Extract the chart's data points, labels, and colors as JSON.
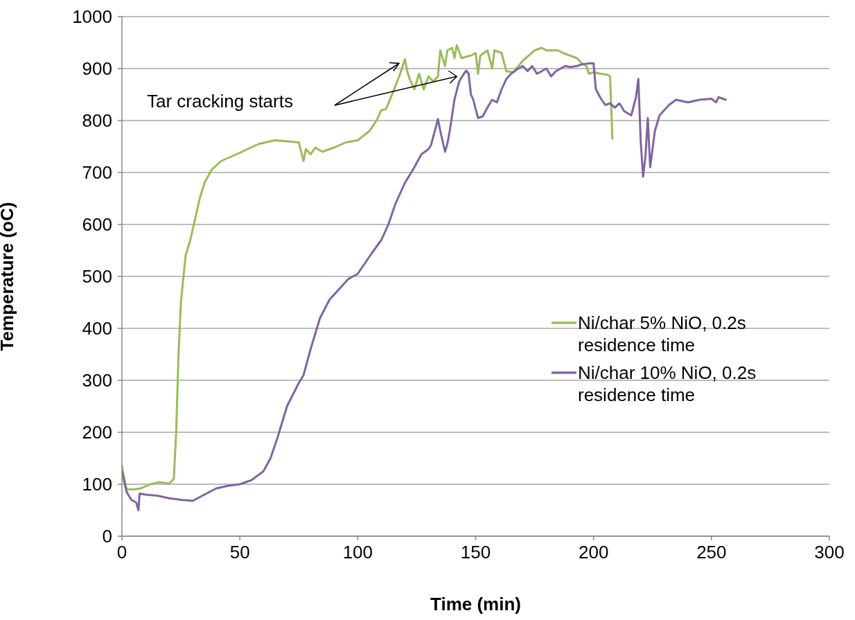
{
  "chart_data": {
    "type": "line",
    "xlabel": "Time (min)",
    "ylabel": "Temperature (oC)",
    "xlim": [
      0,
      300
    ],
    "xticks": [
      0,
      50,
      100,
      150,
      200,
      250,
      300
    ],
    "ylim": [
      0,
      1000
    ],
    "yticks": [
      0,
      100,
      200,
      300,
      400,
      500,
      600,
      700,
      800,
      900,
      1000
    ],
    "grid": "y",
    "legend": "right",
    "marker": "none",
    "line_style": "solid",
    "annotations": [
      "Tar cracking starts"
    ],
    "series": [
      {
        "name": "Ni/char 5% NiO, 0.2s residence time",
        "color": "#9bbb59",
        "x": [
          0,
          1,
          2,
          5,
          8,
          12,
          16,
          20,
          22,
          23,
          24,
          25,
          27,
          29,
          31,
          33,
          35,
          38,
          42,
          50,
          58,
          65,
          70,
          75,
          76,
          77,
          78,
          80,
          82,
          85,
          90,
          95,
          100,
          105,
          108,
          110,
          112,
          115,
          118,
          120,
          121,
          122,
          124,
          126,
          128,
          130,
          132,
          134,
          135,
          137,
          138,
          140,
          141,
          142,
          144,
          146,
          148,
          150,
          151,
          152,
          155,
          157,
          158,
          161,
          163,
          166,
          170,
          175,
          178,
          180,
          182,
          185,
          187,
          190,
          193,
          195,
          197,
          198,
          200,
          203,
          206,
          207,
          208
        ],
        "values": [
          135,
          110,
          90,
          90,
          92,
          100,
          104,
          101,
          110,
          200,
          350,
          450,
          540,
          570,
          610,
          650,
          680,
          705,
          722,
          738,
          755,
          762,
          760,
          758,
          740,
          722,
          745,
          735,
          748,
          740,
          748,
          758,
          762,
          780,
          800,
          820,
          822,
          855,
          890,
          918,
          895,
          880,
          860,
          890,
          860,
          885,
          875,
          885,
          935,
          905,
          935,
          940,
          920,
          945,
          920,
          923,
          925,
          930,
          890,
          925,
          935,
          900,
          935,
          930,
          895,
          893,
          915,
          935,
          940,
          935,
          935,
          935,
          930,
          925,
          920,
          910,
          905,
          890,
          893,
          890,
          888,
          885,
          765
        ]
      },
      {
        "name": "Ni/char 10% NiO, 0.2s residence time",
        "color": "#8064a2",
        "x": [
          0,
          2,
          4,
          6,
          7,
          7.5,
          10,
          15,
          20,
          25,
          30,
          35,
          40,
          45,
          50,
          55,
          60,
          63,
          66,
          70,
          75,
          77,
          80,
          84,
          88,
          92,
          96,
          100,
          103,
          106,
          110,
          113,
          116,
          120,
          124,
          127,
          130,
          131,
          133,
          134,
          135,
          136,
          137,
          138,
          139,
          141,
          143,
          145,
          146,
          147,
          148,
          149,
          150,
          151,
          153,
          155,
          157,
          159,
          161,
          163,
          165,
          168,
          170,
          172,
          174,
          176,
          178,
          180,
          182,
          184,
          186,
          188,
          190,
          193,
          195,
          198,
          200,
          201,
          203,
          205,
          207,
          209,
          211,
          213,
          216,
          218,
          219,
          220,
          221,
          222,
          223,
          224,
          226,
          228,
          230,
          232,
          235,
          240,
          245,
          250,
          252,
          253,
          256
        ],
        "values": [
          125,
          85,
          70,
          65,
          50,
          82,
          80,
          78,
          73,
          70,
          68,
          80,
          92,
          97,
          100,
          108,
          125,
          150,
          190,
          250,
          295,
          310,
          360,
          420,
          455,
          475,
          495,
          505,
          525,
          545,
          570,
          600,
          640,
          680,
          710,
          735,
          745,
          752,
          785,
          803,
          780,
          760,
          740,
          755,
          780,
          840,
          875,
          890,
          896,
          890,
          850,
          840,
          822,
          805,
          808,
          825,
          840,
          835,
          860,
          880,
          890,
          900,
          905,
          895,
          905,
          890,
          895,
          900,
          885,
          895,
          900,
          905,
          903,
          905,
          908,
          910,
          910,
          860,
          843,
          830,
          833,
          825,
          833,
          818,
          810,
          845,
          880,
          760,
          692,
          730,
          805,
          710,
          780,
          810,
          820,
          830,
          840,
          835,
          840,
          842,
          835,
          845,
          840
        ]
      }
    ]
  }
}
